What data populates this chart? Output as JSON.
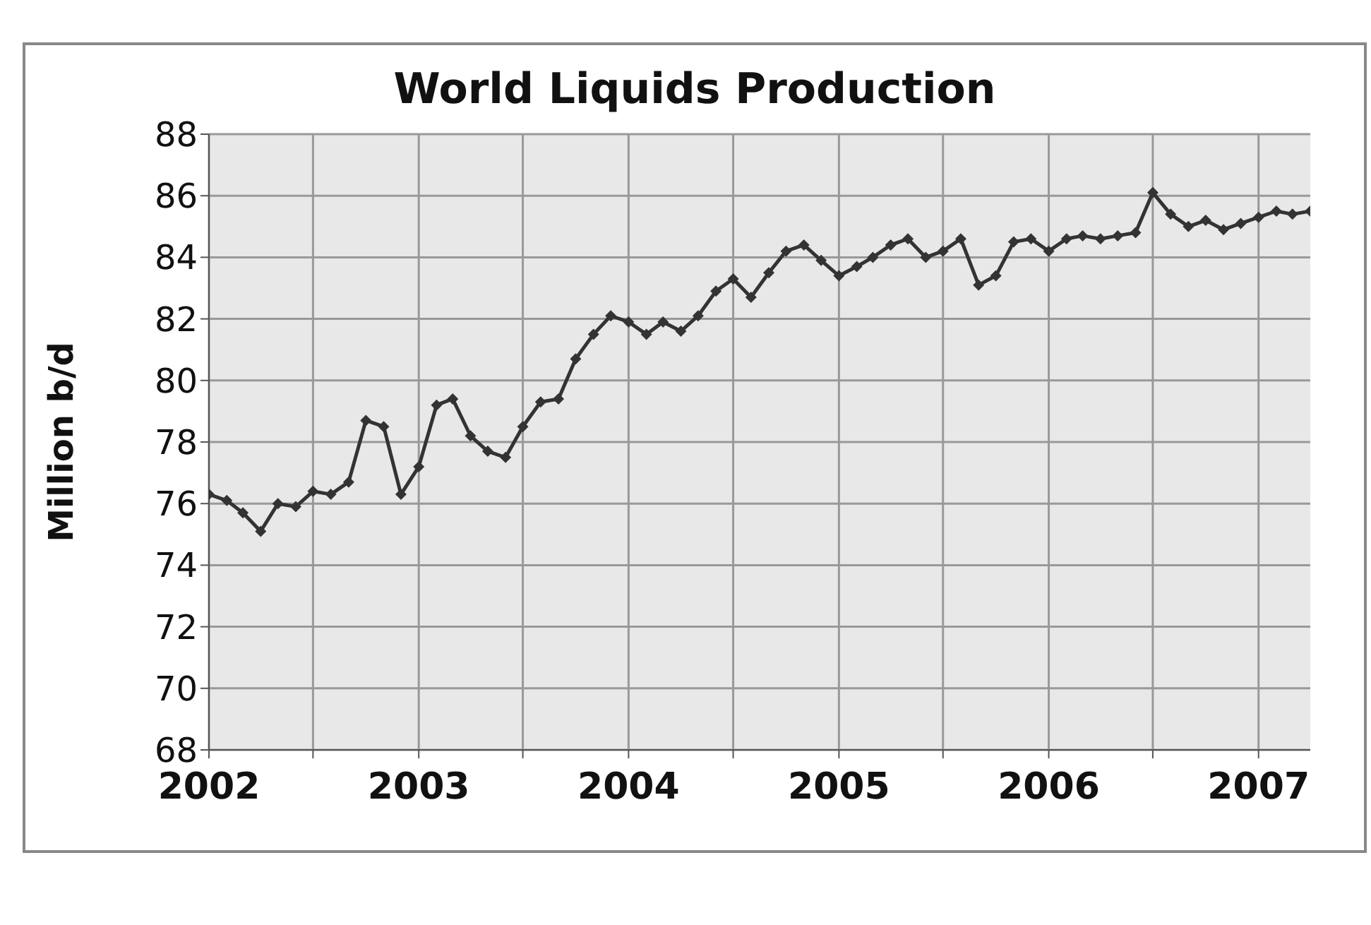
{
  "chart_data": {
    "type": "line",
    "title": "World Liquids Production",
    "ylabel": "Million b/d",
    "x": [
      "2002-01",
      "2002-02",
      "2002-03",
      "2002-04",
      "2002-05",
      "2002-06",
      "2002-07",
      "2002-08",
      "2002-09",
      "2002-10",
      "2002-11",
      "2002-12",
      "2003-01",
      "2003-02",
      "2003-03",
      "2003-04",
      "2003-05",
      "2003-06",
      "2003-07",
      "2003-08",
      "2003-09",
      "2003-10",
      "2003-11",
      "2003-12",
      "2004-01",
      "2004-02",
      "2004-03",
      "2004-04",
      "2004-05",
      "2004-06",
      "2004-07",
      "2004-08",
      "2004-09",
      "2004-10",
      "2004-11",
      "2004-12",
      "2005-01",
      "2005-02",
      "2005-03",
      "2005-04",
      "2005-05",
      "2005-06",
      "2005-07",
      "2005-08",
      "2005-09",
      "2005-10",
      "2005-11",
      "2005-12",
      "2006-01",
      "2006-02",
      "2006-03",
      "2006-04",
      "2006-05",
      "2006-06",
      "2006-07",
      "2006-08",
      "2006-09",
      "2006-10",
      "2006-11",
      "2006-12",
      "2007-01",
      "2007-02",
      "2007-03",
      "2007-04"
    ],
    "series": [
      {
        "color": "#333333",
        "values": [
          76.3,
          76.1,
          75.7,
          75.1,
          76.0,
          75.9,
          76.4,
          76.3,
          76.7,
          78.7,
          78.5,
          76.3,
          77.2,
          79.2,
          79.4,
          78.2,
          77.7,
          77.5,
          78.5,
          79.3,
          79.4,
          80.7,
          81.5,
          82.1,
          81.9,
          81.5,
          81.9,
          81.6,
          82.1,
          82.9,
          83.3,
          82.7,
          83.5,
          84.2,
          84.4,
          83.9,
          83.4,
          83.7,
          84.0,
          84.4,
          84.6,
          84.0,
          84.2,
          84.6,
          83.1,
          83.4,
          84.5,
          84.6,
          84.2,
          84.6,
          84.7,
          84.6,
          84.7,
          84.8,
          86.1,
          85.4,
          85.0,
          85.2,
          84.9,
          85.1,
          85.3,
          85.5,
          85.4,
          85.5
        ]
      }
    ],
    "xlim": [
      "2002-01",
      "2007-04"
    ],
    "xticks": [
      "2002",
      {
        "value": "2002-07",
        "label": null
      },
      "2003",
      {
        "value": "2003-07",
        "label": null
      },
      "2004",
      {
        "value": "2004-07",
        "label": null
      },
      "2005",
      {
        "value": "2005-07",
        "label": null
      },
      "2006",
      {
        "value": "2006-07",
        "label": null
      },
      "2007"
    ],
    "ylim": [
      68,
      88
    ],
    "yticks": [
      68,
      70,
      72,
      74,
      76,
      78,
      80,
      82,
      84,
      86,
      88
    ],
    "grid": true,
    "marker": "diamond",
    "line_style": "solid"
  }
}
